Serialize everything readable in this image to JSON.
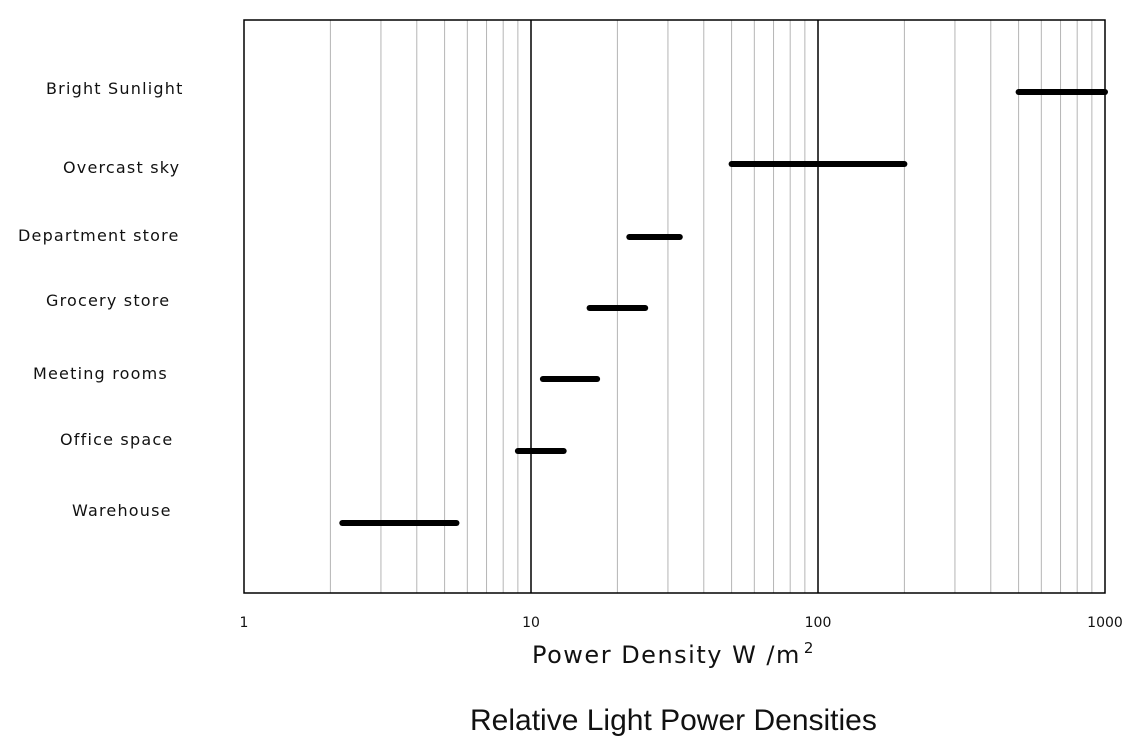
{
  "chart_data": {
    "type": "range-bar",
    "title": "Relative Light Power Densities",
    "xlabel": {
      "text": "Power Density W /m",
      "superscript": "2"
    },
    "x_scale": "log",
    "xlim": [
      1,
      1000
    ],
    "x_ticks": [
      "1",
      "10",
      "100",
      "1000"
    ],
    "grid": {
      "minor_vertical": true,
      "major_vertical": true
    },
    "categories": [
      "Bright Sunlight",
      "Overcast sky",
      "Department store",
      "Grocery store",
      "Meeting rooms",
      "Office space",
      "Warehouse"
    ],
    "ranges": [
      {
        "label": "Bright Sunlight",
        "min": 500,
        "max": 1000
      },
      {
        "label": "Overcast sky",
        "min": 50,
        "max": 200
      },
      {
        "label": "Department store",
        "min": 22,
        "max": 33
      },
      {
        "label": "Grocery store",
        "min": 16,
        "max": 25
      },
      {
        "label": "Meeting rooms",
        "min": 11,
        "max": 17
      },
      {
        "label": "Office space",
        "min": 9,
        "max": 13
      },
      {
        "label": "Warehouse",
        "min": 2.2,
        "max": 5.5
      }
    ]
  }
}
